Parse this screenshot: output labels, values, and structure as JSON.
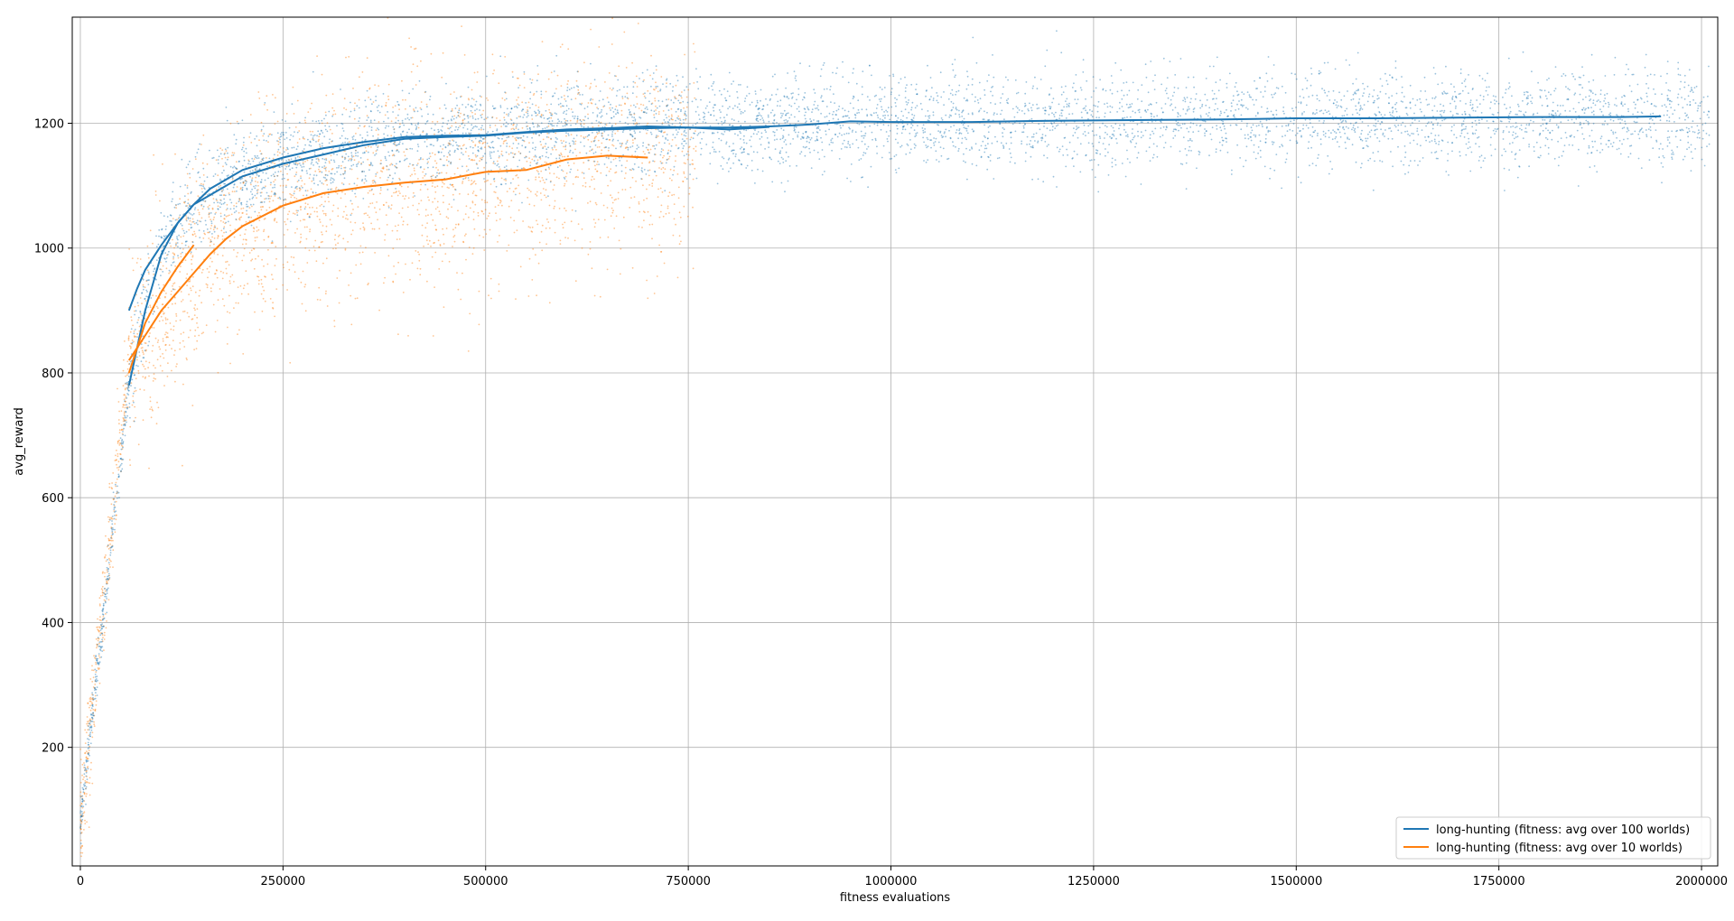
{
  "chart_data": {
    "type": "line",
    "title": "",
    "xlabel": "fitness evaluations",
    "ylabel": "avg_reward",
    "xlim": [
      -10000,
      2020000
    ],
    "ylim": [
      10,
      1370
    ],
    "xticks": [
      0,
      250000,
      500000,
      750000,
      1000000,
      1250000,
      1500000,
      1750000,
      2000000
    ],
    "xtick_labels": [
      "0",
      "250000",
      "500000",
      "750000",
      "1000000",
      "1250000",
      "1500000",
      "1750000",
      "2000000"
    ],
    "yticks": [
      200,
      400,
      600,
      800,
      1000,
      1200
    ],
    "ytick_labels": [
      "200",
      "400",
      "600",
      "800",
      "1000",
      "1200"
    ],
    "grid": true,
    "legend_position": "bottom-right",
    "colors": {
      "series_100": "#1f77b4",
      "series_10": "#ff7f0e"
    },
    "series": [
      {
        "name": "long-hunting (fitness: avg over 100 worlds)",
        "color": "#1f77b4",
        "lines": [
          {
            "x": [
              60000,
              80000,
              100000,
              120000,
              140000,
              160000,
              180000,
              200000,
              250000,
              300000,
              350000,
              400000,
              450000,
              500000,
              550000,
              600000,
              650000,
              700000,
              750000,
              800000,
              850000,
              900000,
              950000,
              1000000,
              1100000,
              1200000,
              1300000,
              1400000,
              1500000,
              1600000,
              1700000,
              1800000,
              1900000,
              1950000
            ],
            "y": [
              780,
              900,
              990,
              1040,
              1070,
              1085,
              1100,
              1115,
              1135,
              1150,
              1165,
              1175,
              1178,
              1180,
              1185,
              1188,
              1190,
              1192,
              1193,
              1193,
              1195,
              1198,
              1203,
              1202,
              1202,
              1204,
              1205,
              1206,
              1208,
              1208,
              1209,
              1210,
              1210,
              1211
            ]
          },
          {
            "x": [
              60000,
              70000,
              80000,
              100000,
              120000,
              140000,
              160000,
              180000,
              200000,
              250000,
              300000,
              350000,
              400000,
              450000,
              500000,
              550000,
              600000,
              650000,
              700000,
              750000,
              800000,
              850000
            ],
            "y": [
              900,
              935,
              965,
              1005,
              1040,
              1070,
              1095,
              1110,
              1125,
              1145,
              1160,
              1170,
              1178,
              1180,
              1181,
              1186,
              1190,
              1192,
              1195,
              1193,
              1190,
              1194
            ]
          }
        ]
      },
      {
        "name": "long-hunting (fitness: avg over 10 worlds)",
        "color": "#ff7f0e",
        "lines": [
          {
            "x": [
              60000,
              80000,
              100000,
              120000,
              140000,
              160000,
              180000,
              200000,
              250000,
              300000,
              350000,
              400000,
              450000,
              500000,
              550000,
              600000,
              650000,
              700000
            ],
            "y": [
              820,
              860,
              900,
              930,
              960,
              990,
              1015,
              1035,
              1068,
              1088,
              1098,
              1105,
              1110,
              1122,
              1125,
              1142,
              1148,
              1145
            ]
          },
          {
            "x": [
              60000,
              80000,
              100000,
              120000,
              140000
            ],
            "y": [
              800,
              880,
              930,
              970,
              1005
            ]
          }
        ]
      }
    ]
  }
}
